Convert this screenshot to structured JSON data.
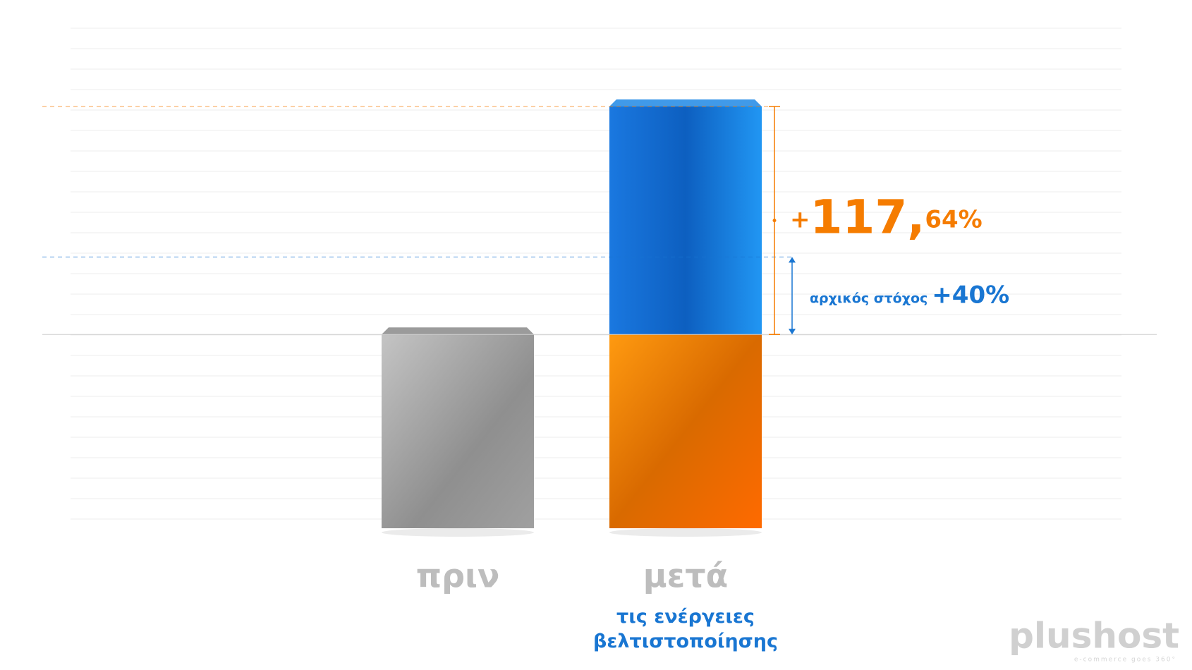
{
  "chart_data": {
    "type": "bar",
    "stacked": true,
    "categories": [
      "πριν",
      "μετά"
    ],
    "sublabel": "τις ενέργειες βελτιστοποίησης",
    "series": [
      {
        "color": "#a6a6a6",
        "values": [
          100,
          null
        ]
      },
      {
        "color": "#f57c00",
        "values": [
          null,
          100
        ]
      },
      {
        "color": "#1e88e5",
        "values": [
          null,
          117.64
        ],
        "value_labels": [
          null,
          "+117,64%"
        ]
      }
    ],
    "target": {
      "label": "αρχικός στόχος",
      "value": 40,
      "value_label": "+40%",
      "color": "#1976d2"
    },
    "logo": "plushost",
    "logo_tagline": "e-commerce goes 360°"
  }
}
